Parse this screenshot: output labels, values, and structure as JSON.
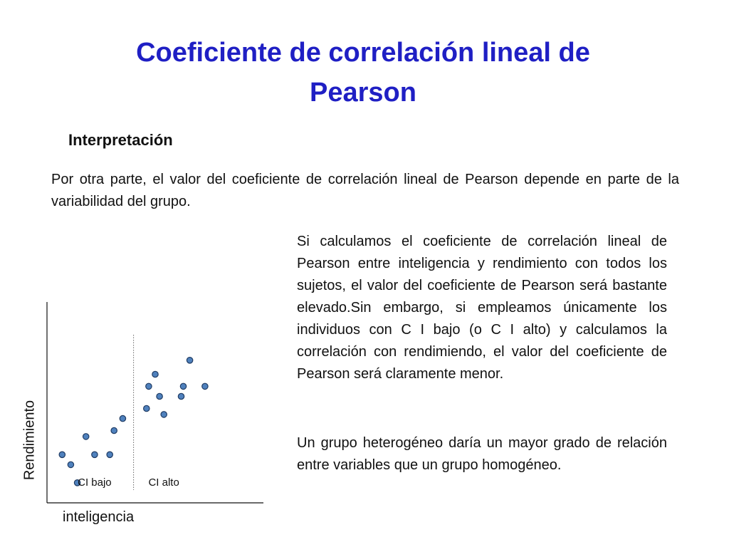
{
  "slide": {
    "title_line1": "Coeficiente de correlación lineal de",
    "title_line2": "Pearson",
    "subtitle": "Interpretación",
    "intro": "Por otra parte, el valor del coeficiente de correlación lineal de Pearson depende en parte de la variabilidad del grupo.",
    "body_text_1": "Si calculamos el coeficiente de correlación lineal de Pearson entre inteligencia y rendimiento con todos los sujetos, el valor del coeficiente de Pearson será bastante elevado.Sin embargo, si empleamos únicamente los individuos con C I bajo (o C I alto) y calculamos la correlación con rendimiendo, el valor del coeficiente de Pearson será claramente menor.",
    "body_text_2": "Un grupo heterogéneo daría un mayor grado de relación entre variables que un grupo homogéneo.",
    "colors": {
      "title": "#1f1fc4",
      "point_fill": "#4f81bd",
      "point_stroke": "#1f3b63"
    }
  },
  "chart_data": {
    "type": "scatter",
    "title": "",
    "xlabel": "inteligencia",
    "ylabel": "Rendimiento",
    "xlim": [
      0,
      100
    ],
    "ylim": [
      0,
      100
    ],
    "grid": false,
    "groups": [
      {
        "name": "CI bajo",
        "points": [
          {
            "x": 7,
            "y": 24
          },
          {
            "x": 11,
            "y": 19
          },
          {
            "x": 14,
            "y": 10
          },
          {
            "x": 18,
            "y": 33
          },
          {
            "x": 22,
            "y": 24
          },
          {
            "x": 29,
            "y": 24
          },
          {
            "x": 31,
            "y": 36
          },
          {
            "x": 35,
            "y": 42
          }
        ]
      },
      {
        "name": "CI alto",
        "points": [
          {
            "x": 46,
            "y": 47
          },
          {
            "x": 47,
            "y": 58
          },
          {
            "x": 50,
            "y": 64
          },
          {
            "x": 52,
            "y": 53
          },
          {
            "x": 54,
            "y": 44
          },
          {
            "x": 62,
            "y": 53
          },
          {
            "x": 63,
            "y": 58
          },
          {
            "x": 66,
            "y": 71
          },
          {
            "x": 73,
            "y": 58
          }
        ]
      }
    ],
    "divider_x": 40,
    "group_labels": [
      "CI bajo",
      "CI alto"
    ]
  }
}
